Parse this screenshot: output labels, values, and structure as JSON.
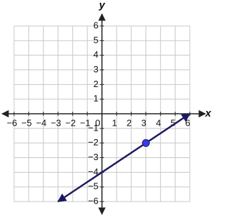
{
  "chart_data": {
    "type": "line",
    "xlabel": "x",
    "ylabel": "y",
    "xlim": [
      -6,
      6
    ],
    "ylim": [
      -6,
      6
    ],
    "xticks": [
      {
        "value": -6,
        "label": "−6"
      },
      {
        "value": -5,
        "label": "−5"
      },
      {
        "value": -4,
        "label": "−4"
      },
      {
        "value": -3,
        "label": "−3"
      },
      {
        "value": -2,
        "label": "−2"
      },
      {
        "value": -1,
        "label": "−1"
      },
      0,
      1,
      2,
      3,
      4,
      5,
      6
    ],
    "yticks": [
      {
        "value": -6,
        "label": "−6"
      },
      {
        "value": -5,
        "label": "−5"
      },
      {
        "value": -4,
        "label": "−4"
      },
      {
        "value": -3,
        "label": "−3"
      },
      {
        "value": -2,
        "label": "−2"
      },
      {
        "value": -1,
        "label": "−1"
      },
      1,
      2,
      3,
      4,
      5,
      6
    ],
    "grid": true,
    "series": [
      {
        "color": "#1c1a5e",
        "x": [
          -3,
          6
        ],
        "values": [
          -6,
          0
        ]
      },
      {
        "color": "#3a3af0",
        "x": [
          3
        ],
        "values": [
          -2
        ],
        "marker": true
      }
    ]
  }
}
